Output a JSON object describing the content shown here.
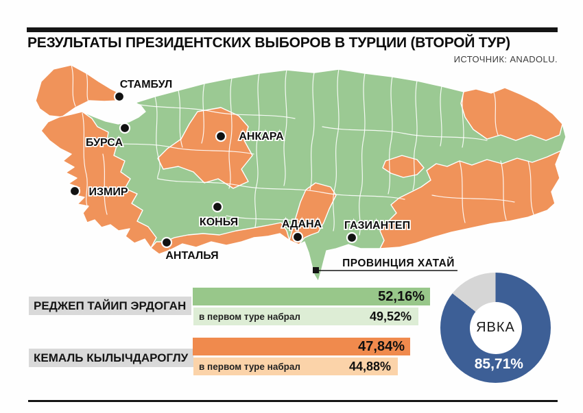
{
  "header": {
    "title": "РЕЗУЛЬТАТЫ ПРЕЗИДЕНТСКИХ ВЫБОРОВ В ТУРЦИИ (ВТОРОЙ ТУР)",
    "source": "ИСТОЧНИК: ANADOLU."
  },
  "map": {
    "colors": {
      "erdogan_province_green": "#9BC993",
      "kilicdaroglu_province_orange": "#F0935A"
    },
    "cities": [
      {
        "name": "СТАМБУЛ"
      },
      {
        "name": "БУРСА"
      },
      {
        "name": "АНКАРА"
      },
      {
        "name": "ИЗМИР"
      },
      {
        "name": "КОНЬЯ"
      },
      {
        "name": "АНТАЛЬЯ"
      },
      {
        "name": "АДАНА"
      },
      {
        "name": "ГАЗИАНТЕП"
      }
    ],
    "callout": {
      "label": "ПРОВИНЦИЯ ХАТАЙ"
    }
  },
  "results": {
    "rows": [
      {
        "candidate": "РЕДЖЕП ТАЙИП ЭРДОГАН",
        "second_round_pct": 52.16,
        "second_round_label": "52,16%",
        "first_round_note": "в первом туре набрал",
        "first_round_pct": 49.52,
        "first_round_label": "49,52%",
        "bar_color": "#98C78A",
        "bar_light_color": "#DDEDD5"
      },
      {
        "candidate": "КЕМАЛЬ КЫЛЫЧДАРОГЛУ",
        "second_round_pct": 47.84,
        "second_round_label": "47,84%",
        "first_round_note": "в первом туре набрал",
        "first_round_pct": 44.88,
        "first_round_label": "44,88%",
        "bar_color": "#F08A4D",
        "bar_light_color": "#FBD3A9"
      }
    ]
  },
  "turnout": {
    "label": "ЯВКА",
    "pct": 85.71,
    "pct_label": "85,71%",
    "ring_color": "#3D5F96",
    "rest_color": "#D6D6D6"
  },
  "chart_data": [
    {
      "type": "bar",
      "orientation": "horizontal",
      "title": "Результаты президентских выборов в Турции (второй тур)",
      "categories": [
        "РЕДЖЕП ТАЙИП ЭРДОГАН",
        "КЕМАЛЬ КЫЛЫЧДАРОГЛУ"
      ],
      "series": [
        {
          "name": "второй тур",
          "values": [
            52.16,
            47.84
          ]
        },
        {
          "name": "в первом туре набрал",
          "values": [
            49.52,
            44.88
          ]
        }
      ],
      "unit": "%",
      "xlim": [
        0,
        52.16
      ],
      "legend_position": "none"
    },
    {
      "type": "pie",
      "donut": true,
      "title": "ЯВКА",
      "labels": [
        "явка",
        "остальное"
      ],
      "values": [
        85.71,
        14.29
      ],
      "colors": [
        "#3D5F96",
        "#D6D6D6"
      ]
    }
  ]
}
